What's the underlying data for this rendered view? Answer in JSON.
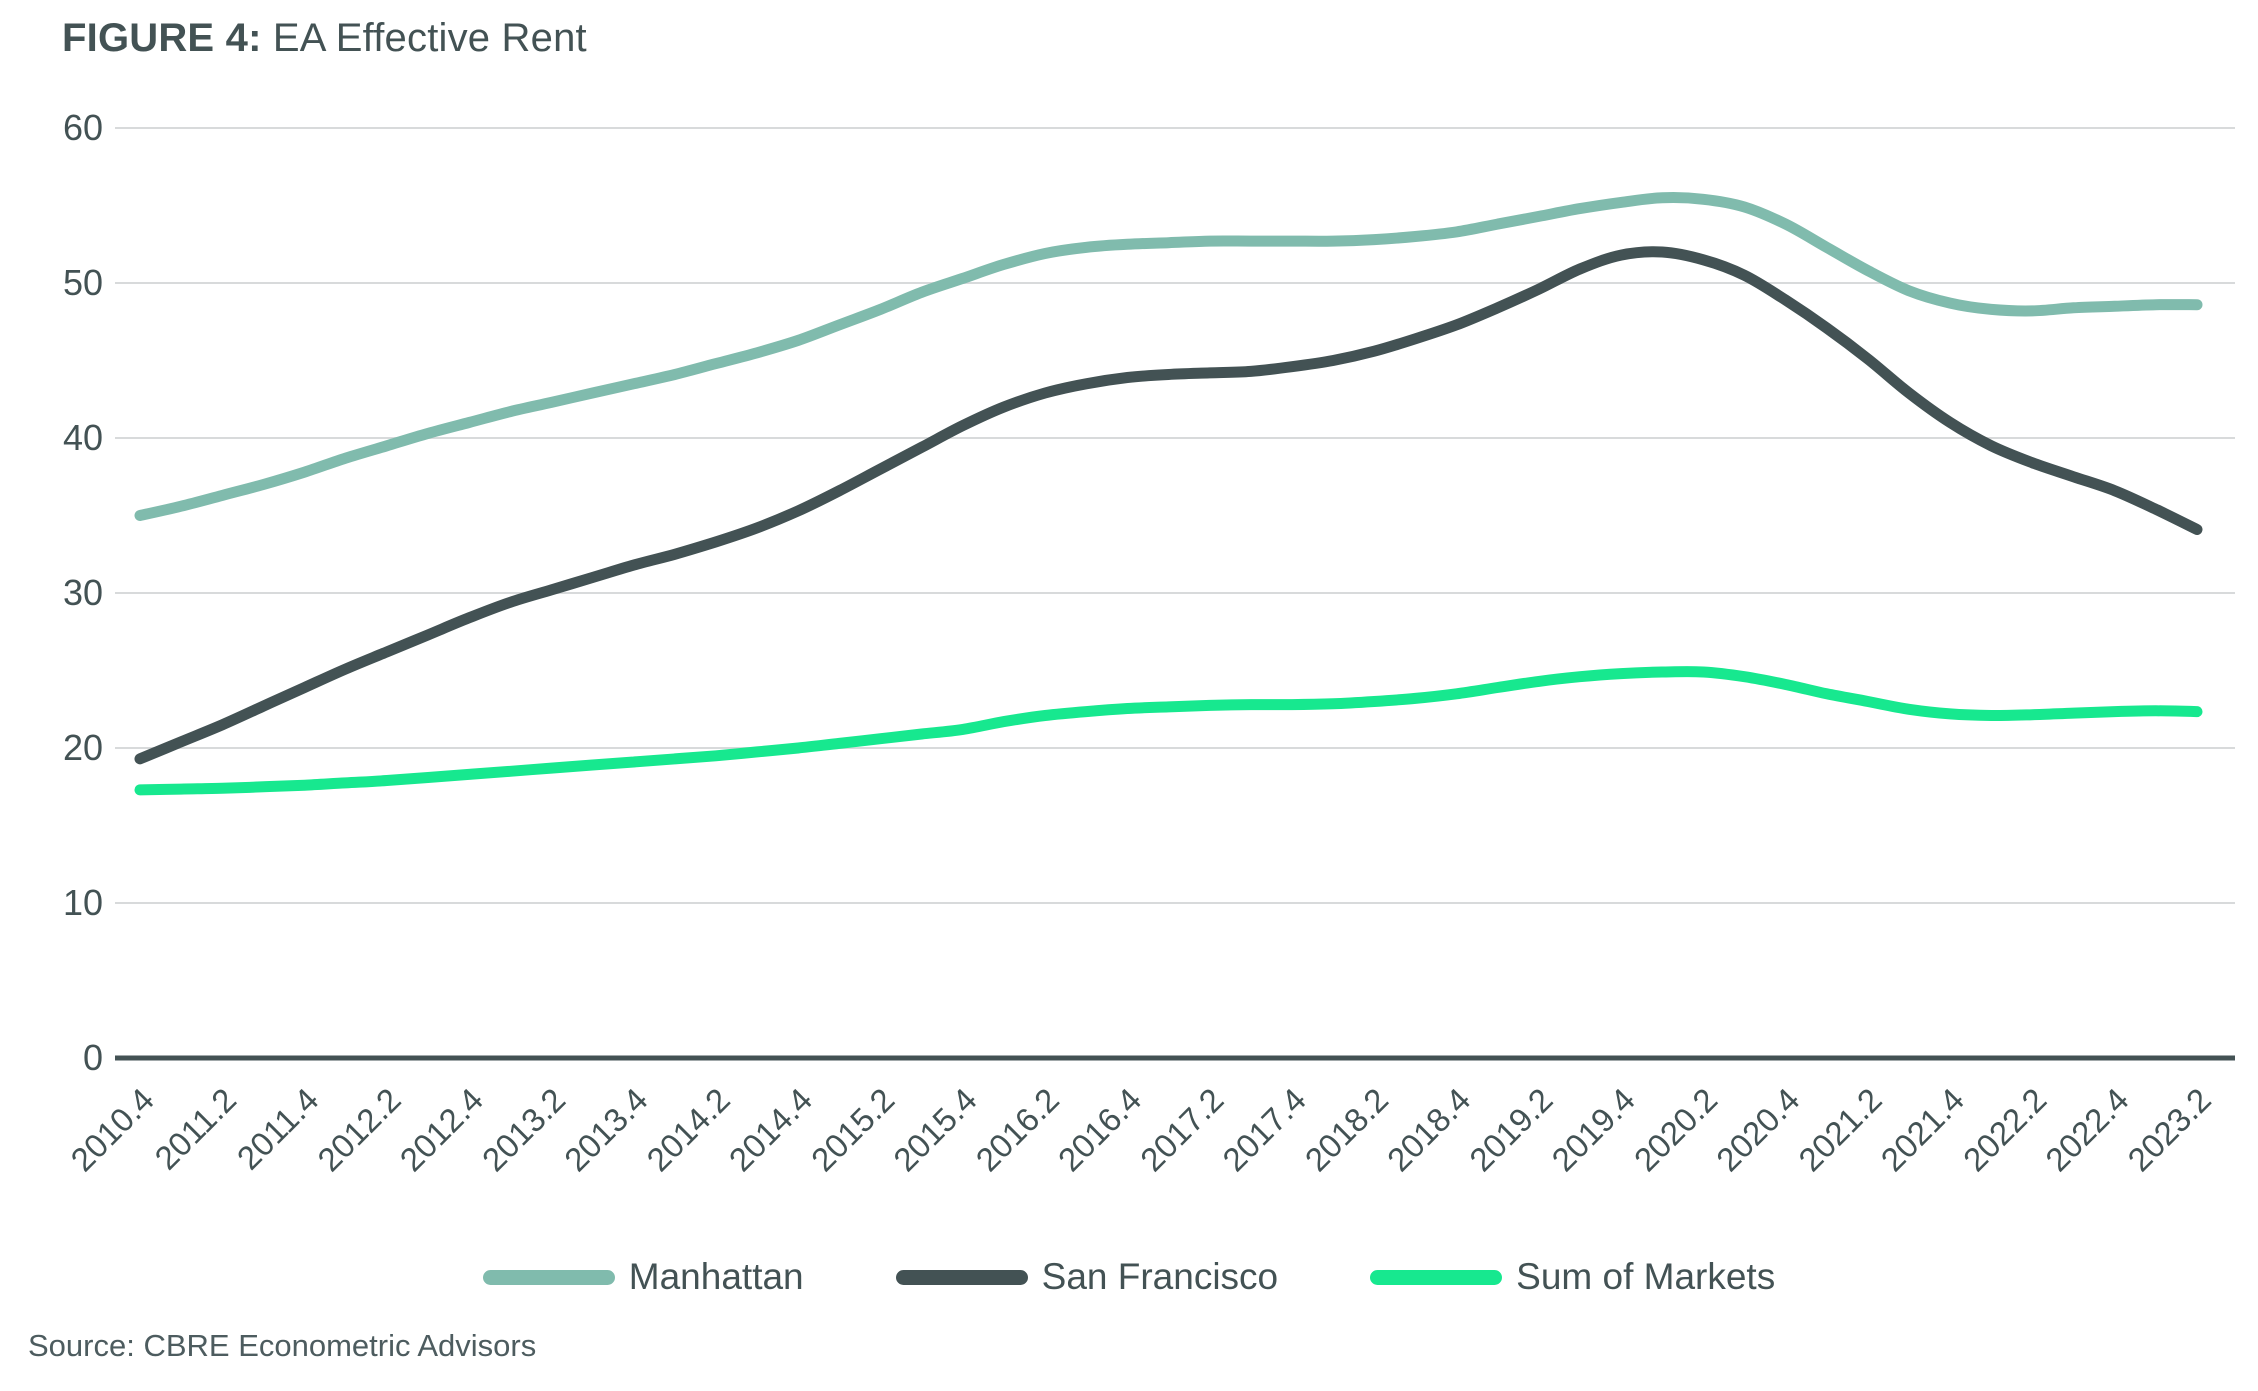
{
  "title": {
    "prefix": "FIGURE 4:",
    "rest": " EA Effective Rent"
  },
  "source": "Source: CBRE Econometric Advisors",
  "colors": {
    "text": "#435254",
    "gridline": "#d8dadb",
    "zero_axis": "#435254",
    "manhattan": "#80BBAD",
    "san_francisco": "#435254",
    "sum_of_markets": "#17E88F"
  },
  "legend": {
    "items": [
      "Manhattan",
      "San Francisco",
      "Sum of Markets"
    ]
  },
  "chart_data": {
    "type": "line",
    "title": "FIGURE 4: EA Effective Rent",
    "xlabel": "",
    "ylabel": "",
    "ylim": [
      0,
      60
    ],
    "yticks": [
      0,
      10,
      20,
      30,
      40,
      50,
      60
    ],
    "grid": "horizontal",
    "legend_position": "bottom-center",
    "x_tick_labels": [
      "2010.4",
      "2011.2",
      "2011.4",
      "2012.2",
      "2012.4",
      "2013.2",
      "2013.4",
      "2014.2",
      "2014.4",
      "2015.2",
      "2015.4",
      "2016.2",
      "2016.4",
      "2017.2",
      "2017.4",
      "2018.2",
      "2018.4",
      "2019.2",
      "2019.4",
      "2020.2",
      "2020.4",
      "2021.2",
      "2021.4",
      "2022.2",
      "2022.4",
      "2023.2"
    ],
    "quarters_per_tick": 2,
    "x": [
      "2010.4",
      "2011.1",
      "2011.2",
      "2011.3",
      "2011.4",
      "2012.1",
      "2012.2",
      "2012.3",
      "2012.4",
      "2013.1",
      "2013.2",
      "2013.3",
      "2013.4",
      "2014.1",
      "2014.2",
      "2014.3",
      "2014.4",
      "2015.1",
      "2015.2",
      "2015.3",
      "2015.4",
      "2016.1",
      "2016.2",
      "2016.3",
      "2016.4",
      "2017.1",
      "2017.2",
      "2017.3",
      "2017.4",
      "2018.1",
      "2018.2",
      "2018.3",
      "2018.4",
      "2019.1",
      "2019.2",
      "2019.3",
      "2019.4",
      "2020.1",
      "2020.2",
      "2020.3",
      "2020.4",
      "2021.1",
      "2021.2",
      "2021.3",
      "2021.4",
      "2022.1",
      "2022.2",
      "2022.3",
      "2022.4",
      "2023.1",
      "2023.2"
    ],
    "series": [
      {
        "name": "Manhattan",
        "color": "#80BBAD",
        "values": [
          35.0,
          35.6,
          36.3,
          37.0,
          37.8,
          38.7,
          39.5,
          40.3,
          41.0,
          41.7,
          42.3,
          42.9,
          43.5,
          44.1,
          44.8,
          45.5,
          46.3,
          47.3,
          48.3,
          49.4,
          50.3,
          51.2,
          51.9,
          52.3,
          52.5,
          52.6,
          52.7,
          52.7,
          52.7,
          52.7,
          52.8,
          53.0,
          53.3,
          53.8,
          54.3,
          54.8,
          55.2,
          55.5,
          55.4,
          54.9,
          53.8,
          52.3,
          50.8,
          49.5,
          48.7,
          48.3,
          48.2,
          48.4,
          48.5,
          48.6,
          48.6
        ]
      },
      {
        "name": "San Francisco",
        "color": "#435254",
        "values": [
          19.3,
          20.4,
          21.5,
          22.7,
          23.9,
          25.1,
          26.2,
          27.3,
          28.4,
          29.4,
          30.2,
          31.0,
          31.8,
          32.5,
          33.3,
          34.2,
          35.3,
          36.6,
          38.0,
          39.4,
          40.8,
          42.0,
          42.9,
          43.5,
          43.9,
          44.1,
          44.2,
          44.3,
          44.6,
          45.0,
          45.6,
          46.4,
          47.3,
          48.4,
          49.6,
          50.9,
          51.8,
          52.0,
          51.5,
          50.5,
          48.9,
          47.1,
          45.1,
          42.9,
          41.0,
          39.5,
          38.4,
          37.5,
          36.6,
          35.4,
          34.1
        ]
      },
      {
        "name": "Sum of Markets",
        "color": "#17E88F",
        "values": [
          17.3,
          17.35,
          17.4,
          17.5,
          17.6,
          17.75,
          17.9,
          18.1,
          18.3,
          18.5,
          18.7,
          18.9,
          19.1,
          19.3,
          19.5,
          19.75,
          20.0,
          20.3,
          20.6,
          20.9,
          21.2,
          21.7,
          22.1,
          22.35,
          22.55,
          22.65,
          22.75,
          22.8,
          22.8,
          22.85,
          23.0,
          23.2,
          23.5,
          23.9,
          24.3,
          24.6,
          24.8,
          24.9,
          24.9,
          24.6,
          24.1,
          23.5,
          23.0,
          22.5,
          22.2,
          22.1,
          22.15,
          22.25,
          22.35,
          22.4,
          22.35
        ]
      }
    ]
  }
}
